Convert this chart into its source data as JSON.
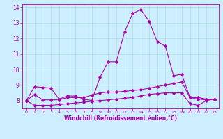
{
  "title": "",
  "xlabel": "Windchill (Refroidissement éolien,°C)",
  "bg_color": "#cceeff",
  "line_color": "#aa00aa",
  "xlim": [
    -0.5,
    23.5
  ],
  "ylim": [
    7.5,
    14.2
  ],
  "xticks": [
    0,
    1,
    2,
    3,
    4,
    5,
    6,
    7,
    8,
    9,
    10,
    11,
    12,
    13,
    14,
    15,
    16,
    17,
    18,
    19,
    20,
    21,
    22,
    23
  ],
  "yticks": [
    8,
    9,
    10,
    11,
    12,
    13,
    14
  ],
  "grid_color": "#aadddd",
  "line1_x": [
    0,
    1,
    2,
    3,
    4,
    5,
    6,
    7,
    8,
    9,
    10,
    11,
    12,
    13,
    14,
    15,
    16,
    17,
    18,
    19,
    20,
    21,
    22,
    23
  ],
  "line1_y": [
    8.0,
    8.9,
    8.85,
    8.8,
    8.1,
    8.3,
    8.3,
    8.1,
    8.0,
    9.5,
    10.5,
    10.5,
    12.4,
    13.6,
    13.85,
    13.1,
    11.8,
    11.5,
    9.6,
    9.7,
    8.2,
    8.2,
    8.1,
    8.1
  ],
  "line2_x": [
    0,
    1,
    2,
    3,
    4,
    5,
    6,
    7,
    8,
    9,
    10,
    11,
    12,
    13,
    14,
    15,
    16,
    17,
    18,
    19,
    20,
    21,
    22,
    23
  ],
  "line2_y": [
    8.0,
    8.4,
    8.05,
    8.05,
    8.05,
    8.2,
    8.2,
    8.2,
    8.35,
    8.5,
    8.55,
    8.55,
    8.6,
    8.65,
    8.7,
    8.8,
    8.9,
    9.0,
    9.1,
    9.2,
    8.2,
    8.1,
    8.05,
    8.1
  ],
  "line3_x": [
    0,
    1,
    2,
    3,
    4,
    5,
    6,
    7,
    8,
    9,
    10,
    11,
    12,
    13,
    14,
    15,
    16,
    17,
    18,
    19,
    20,
    21,
    22,
    23
  ],
  "line3_y": [
    8.0,
    7.7,
    7.7,
    7.7,
    7.75,
    7.8,
    7.85,
    7.9,
    7.95,
    8.0,
    8.05,
    8.1,
    8.15,
    8.2,
    8.3,
    8.4,
    8.45,
    8.5,
    8.5,
    8.5,
    7.8,
    7.7,
    8.0,
    8.1
  ],
  "marker": "D",
  "markersize": 1.8,
  "linewidth": 0.8,
  "xlabel_fontsize": 5.5,
  "xtick_fontsize": 4.5,
  "ytick_fontsize": 5.5
}
